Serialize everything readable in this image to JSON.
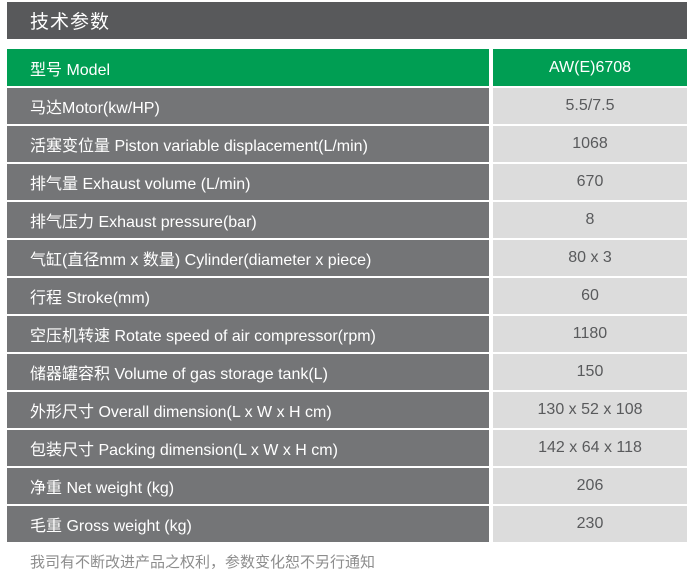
{
  "title": "技术参数",
  "table": {
    "header": {
      "label": "型号 Model",
      "value": "AW(E)6708"
    },
    "rows": [
      {
        "label": "马达Motor(kw/HP)",
        "value": "5.5/7.5"
      },
      {
        "label": "活塞变位量 Piston variable displacement(L/min)",
        "value": "1068"
      },
      {
        "label": "排气量 Exhaust volume (L/min)",
        "value": "670"
      },
      {
        "label": "排气压力 Exhaust pressure(bar)",
        "value": "8"
      },
      {
        "label": "气缸(直径mm x 数量) Cylinder(diameter x piece)",
        "value": "80 x 3"
      },
      {
        "label": "行程 Stroke(mm)",
        "value": "60"
      },
      {
        "label": "空压机转速 Rotate speed of air compressor(rpm)",
        "value": "1180"
      },
      {
        "label": "储器罐容积 Volume of gas storage tank(L)",
        "value": "150"
      },
      {
        "label": "外形尺寸 Overall dimension(L x W x H cm)",
        "value": "130 x 52 x 108"
      },
      {
        "label": "包装尺寸 Packing dimension(L x W x H cm)",
        "value": "142 x 64 x 118"
      },
      {
        "label": "净重 Net weight (kg)",
        "value": "206"
      },
      {
        "label": "毛重 Gross weight (kg)",
        "value": "230"
      }
    ]
  },
  "footer_note": "我司有不断改进产品之权利，参数变化恕不另行通知",
  "colors": {
    "accent_green": "#009e53",
    "title_bar_gray": "#58595b",
    "row_label_gray": "#747577",
    "value_cell_gray": "#dcdcdc",
    "value_text": "#595a5c",
    "note_text": "#8d8d8d"
  }
}
